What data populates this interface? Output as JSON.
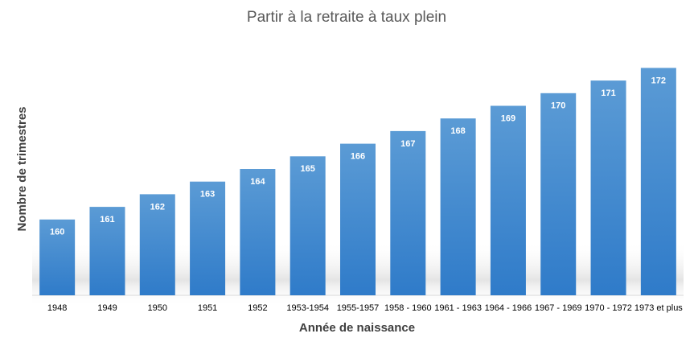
{
  "chart_data": {
    "type": "bar",
    "title": "Partir à la retraite à taux plein",
    "x_label": "Année de naissance",
    "y_label": "Nombre de trimestres",
    "categories": [
      "1948",
      "1949",
      "1950",
      "1951",
      "1952",
      "1953-1954",
      "1955-1957",
      "1958 - 1960",
      "1961 - 1963",
      "1964 - 1966",
      "1967 - 1969",
      "1970 - 1972",
      "1973 et plus"
    ],
    "values": [
      160,
      161,
      162,
      163,
      164,
      165,
      166,
      167,
      168,
      169,
      170,
      171,
      172
    ],
    "color": "#5b9bd5",
    "ylim": [
      154,
      174
    ]
  }
}
